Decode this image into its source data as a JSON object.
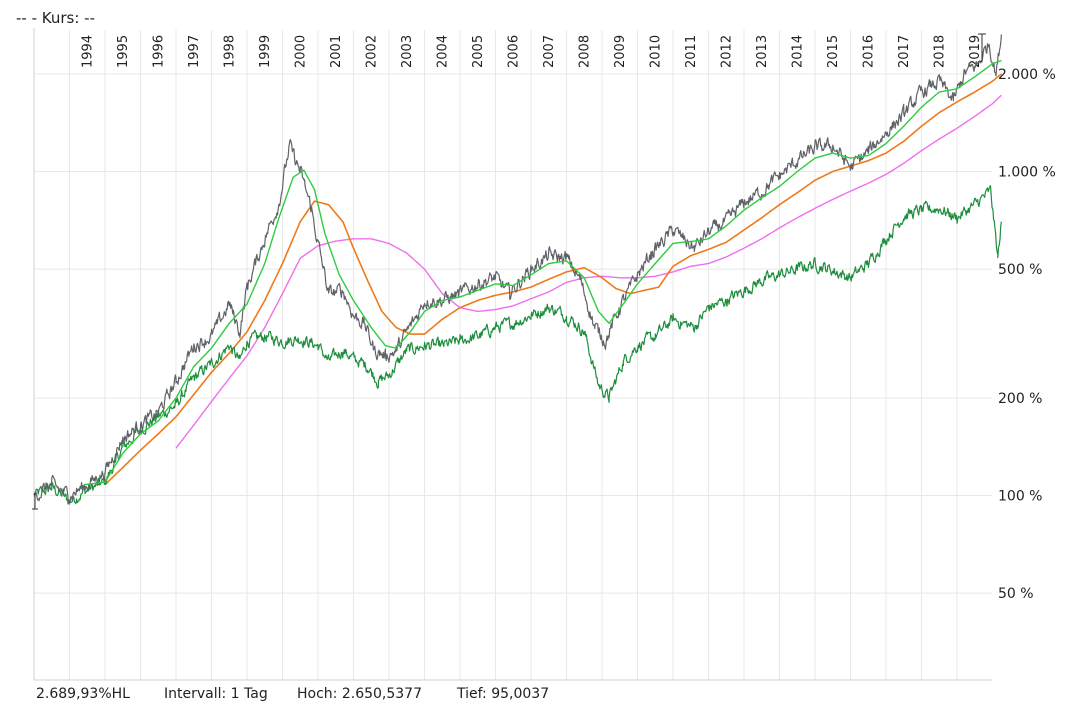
{
  "header": {
    "title": "--  - Kurs: --"
  },
  "footer": {
    "performance": "2.689,93%HL",
    "interval": "Intervall: 1 Tag",
    "high": "Hoch: 2.650,5377",
    "low": "Tief: 95,0037"
  },
  "colors": {
    "price": "#5f6368",
    "benchmark": "#1e8e3e",
    "ma_fast": "#2ecc40",
    "ma_mid": "#f07a1a",
    "ma_slow": "#f06ef0",
    "grid": "#e8e8e8"
  },
  "chart_data": {
    "type": "line",
    "y_scale": "log",
    "ylim": [
      30,
      2900
    ],
    "x_range": [
      1993.0,
      2020.25
    ],
    "year_labels": [
      "1994",
      "1995",
      "1996",
      "1997",
      "1998",
      "1999",
      "2000",
      "2001",
      "2002",
      "2003",
      "2004",
      "2005",
      "2006",
      "2007",
      "2008",
      "2009",
      "2010",
      "2011",
      "2012",
      "2013",
      "2014",
      "2015",
      "2016",
      "2017",
      "2018",
      "2019"
    ],
    "y_ticks": [
      {
        "value": 2000,
        "label": "2.000 %"
      },
      {
        "value": 1000,
        "label": "1.000 %"
      },
      {
        "value": 500,
        "label": "500 %"
      },
      {
        "value": 200,
        "label": "200 %"
      },
      {
        "value": 100,
        "label": "100 %"
      },
      {
        "value": 50,
        "label": "50 %"
      }
    ],
    "series": [
      {
        "key": "price",
        "points": [
          [
            1993.0,
            100
          ],
          [
            1993.5,
            108
          ],
          [
            1994.0,
            100
          ],
          [
            1994.5,
            108
          ],
          [
            1995.0,
            118
          ],
          [
            1995.5,
            150
          ],
          [
            1996.0,
            165
          ],
          [
            1996.5,
            180
          ],
          [
            1997.0,
            225
          ],
          [
            1997.5,
            290
          ],
          [
            1998.0,
            310
          ],
          [
            1998.5,
            390
          ],
          [
            1998.8,
            320
          ],
          [
            1999.0,
            440
          ],
          [
            1999.5,
            620
          ],
          [
            1999.9,
            800
          ],
          [
            2000.2,
            1200
          ],
          [
            2000.5,
            1000
          ],
          [
            2000.8,
            780
          ],
          [
            2001.0,
            600
          ],
          [
            2001.3,
            420
          ],
          [
            2001.7,
            430
          ],
          [
            2002.0,
            360
          ],
          [
            2002.3,
            340
          ],
          [
            2002.6,
            280
          ],
          [
            2002.9,
            270
          ],
          [
            2003.2,
            280
          ],
          [
            2003.5,
            320
          ],
          [
            2003.8,
            360
          ],
          [
            2004.0,
            400
          ],
          [
            2004.5,
            400
          ],
          [
            2005.0,
            420
          ],
          [
            2005.5,
            450
          ],
          [
            2006.0,
            470
          ],
          [
            2006.4,
            420
          ],
          [
            2007.0,
            500
          ],
          [
            2007.5,
            550
          ],
          [
            2008.0,
            540
          ],
          [
            2008.4,
            460
          ],
          [
            2008.8,
            330
          ],
          [
            2009.1,
            300
          ],
          [
            2009.5,
            380
          ],
          [
            2010.0,
            480
          ],
          [
            2010.4,
            560
          ],
          [
            2011.0,
            660
          ],
          [
            2011.6,
            580
          ],
          [
            2012.0,
            650
          ],
          [
            2012.5,
            700
          ],
          [
            2013.0,
            800
          ],
          [
            2013.5,
            870
          ],
          [
            2014.0,
            970
          ],
          [
            2014.5,
            1080
          ],
          [
            2015.0,
            1180
          ],
          [
            2015.5,
            1200
          ],
          [
            2016.0,
            1030
          ],
          [
            2016.5,
            1150
          ],
          [
            2017.0,
            1320
          ],
          [
            2017.5,
            1500
          ],
          [
            2018.0,
            1750
          ],
          [
            2018.5,
            1900
          ],
          [
            2018.9,
            1650
          ],
          [
            2019.2,
            2000
          ],
          [
            2019.6,
            2150
          ],
          [
            2019.9,
            2500
          ],
          [
            2020.1,
            2000
          ],
          [
            2020.25,
            2650
          ]
        ]
      },
      {
        "key": "benchmark",
        "points": [
          [
            1993.0,
            100
          ],
          [
            1993.5,
            106
          ],
          [
            1994.0,
            96
          ],
          [
            1994.5,
            104
          ],
          [
            1995.0,
            110
          ],
          [
            1995.5,
            140
          ],
          [
            1996.0,
            160
          ],
          [
            1996.5,
            175
          ],
          [
            1997.0,
            190
          ],
          [
            1997.5,
            230
          ],
          [
            1998.0,
            255
          ],
          [
            1998.5,
            290
          ],
          [
            1998.8,
            260
          ],
          [
            1999.0,
            300
          ],
          [
            1999.5,
            310
          ],
          [
            2000.0,
            300
          ],
          [
            2000.5,
            305
          ],
          [
            2001.0,
            290
          ],
          [
            2001.3,
            260
          ],
          [
            2001.7,
            280
          ],
          [
            2002.0,
            265
          ],
          [
            2002.4,
            250
          ],
          [
            2002.7,
            225
          ],
          [
            2003.0,
            235
          ],
          [
            2003.5,
            280
          ],
          [
            2004.0,
            290
          ],
          [
            2004.5,
            290
          ],
          [
            2005.0,
            300
          ],
          [
            2005.5,
            310
          ],
          [
            2006.0,
            330
          ],
          [
            2006.5,
            340
          ],
          [
            2007.0,
            360
          ],
          [
            2007.5,
            380
          ],
          [
            2008.0,
            360
          ],
          [
            2008.5,
            320
          ],
          [
            2008.9,
            220
          ],
          [
            2009.2,
            200
          ],
          [
            2009.6,
            260
          ],
          [
            2010.0,
            290
          ],
          [
            2010.5,
            310
          ],
          [
            2011.0,
            350
          ],
          [
            2011.6,
            330
          ],
          [
            2012.0,
            380
          ],
          [
            2012.5,
            400
          ],
          [
            2013.0,
            430
          ],
          [
            2013.5,
            460
          ],
          [
            2014.0,
            480
          ],
          [
            2014.5,
            500
          ],
          [
            2015.0,
            520
          ],
          [
            2015.6,
            490
          ],
          [
            2016.0,
            470
          ],
          [
            2016.5,
            520
          ],
          [
            2017.0,
            620
          ],
          [
            2017.5,
            730
          ],
          [
            2018.0,
            760
          ],
          [
            2018.5,
            770
          ],
          [
            2019.0,
            720
          ],
          [
            2019.5,
            790
          ],
          [
            2019.95,
            870
          ],
          [
            2020.15,
            540
          ],
          [
            2020.25,
            700
          ]
        ]
      },
      {
        "key": "ma_fast",
        "points": [
          [
            1994.4,
            108
          ],
          [
            1995.0,
            110
          ],
          [
            1995.5,
            135
          ],
          [
            1996.0,
            155
          ],
          [
            1996.5,
            170
          ],
          [
            1997.0,
            200
          ],
          [
            1997.5,
            250
          ],
          [
            1998.0,
            285
          ],
          [
            1998.5,
            340
          ],
          [
            1999.0,
            390
          ],
          [
            1999.5,
            520
          ],
          [
            1999.9,
            720
          ],
          [
            2000.3,
            960
          ],
          [
            2000.6,
            1010
          ],
          [
            2000.9,
            880
          ],
          [
            2001.2,
            640
          ],
          [
            2001.6,
            480
          ],
          [
            2002.0,
            400
          ],
          [
            2002.5,
            330
          ],
          [
            2002.9,
            290
          ],
          [
            2003.2,
            285
          ],
          [
            2003.6,
            320
          ],
          [
            2004.0,
            370
          ],
          [
            2004.5,
            400
          ],
          [
            2005.0,
            410
          ],
          [
            2005.5,
            430
          ],
          [
            2006.0,
            450
          ],
          [
            2006.5,
            445
          ],
          [
            2007.0,
            480
          ],
          [
            2007.5,
            520
          ],
          [
            2008.0,
            530
          ],
          [
            2008.5,
            470
          ],
          [
            2008.9,
            370
          ],
          [
            2009.2,
            340
          ],
          [
            2009.6,
            390
          ],
          [
            2010.0,
            450
          ],
          [
            2010.5,
            520
          ],
          [
            2011.0,
            600
          ],
          [
            2011.6,
            610
          ],
          [
            2012.0,
            620
          ],
          [
            2012.5,
            680
          ],
          [
            2013.0,
            760
          ],
          [
            2013.5,
            830
          ],
          [
            2014.0,
            900
          ],
          [
            2014.5,
            1000
          ],
          [
            2015.0,
            1100
          ],
          [
            2015.5,
            1140
          ],
          [
            2016.0,
            1100
          ],
          [
            2016.5,
            1120
          ],
          [
            2017.0,
            1220
          ],
          [
            2017.5,
            1380
          ],
          [
            2018.0,
            1580
          ],
          [
            2018.5,
            1760
          ],
          [
            2019.0,
            1800
          ],
          [
            2019.5,
            1960
          ],
          [
            2020.0,
            2150
          ],
          [
            2020.25,
            2200
          ]
        ]
      },
      {
        "key": "ma_mid",
        "points": [
          [
            1995.0,
            108
          ],
          [
            1995.5,
            122
          ],
          [
            1996.0,
            138
          ],
          [
            1996.5,
            155
          ],
          [
            1997.0,
            175
          ],
          [
            1997.5,
            205
          ],
          [
            1998.0,
            240
          ],
          [
            1998.5,
            275
          ],
          [
            1999.0,
            320
          ],
          [
            1999.5,
            400
          ],
          [
            2000.0,
            520
          ],
          [
            2000.5,
            700
          ],
          [
            2000.9,
            810
          ],
          [
            2001.3,
            790
          ],
          [
            2001.7,
            700
          ],
          [
            2002.0,
            580
          ],
          [
            2002.4,
            460
          ],
          [
            2002.8,
            370
          ],
          [
            2003.2,
            330
          ],
          [
            2003.6,
            315
          ],
          [
            2004.0,
            315
          ],
          [
            2004.5,
            350
          ],
          [
            2005.0,
            380
          ],
          [
            2005.5,
            400
          ],
          [
            2006.0,
            415
          ],
          [
            2006.5,
            425
          ],
          [
            2007.0,
            440
          ],
          [
            2007.5,
            465
          ],
          [
            2008.0,
            490
          ],
          [
            2008.5,
            505
          ],
          [
            2009.0,
            470
          ],
          [
            2009.4,
            435
          ],
          [
            2009.8,
            420
          ],
          [
            2010.2,
            430
          ],
          [
            2010.6,
            440
          ],
          [
            2011.0,
            510
          ],
          [
            2011.5,
            550
          ],
          [
            2012.0,
            575
          ],
          [
            2012.5,
            605
          ],
          [
            2013.0,
            660
          ],
          [
            2013.5,
            720
          ],
          [
            2014.0,
            790
          ],
          [
            2014.5,
            860
          ],
          [
            2015.0,
            940
          ],
          [
            2015.5,
            1000
          ],
          [
            2016.0,
            1040
          ],
          [
            2016.5,
            1080
          ],
          [
            2017.0,
            1140
          ],
          [
            2017.5,
            1240
          ],
          [
            2018.0,
            1380
          ],
          [
            2018.5,
            1520
          ],
          [
            2019.0,
            1640
          ],
          [
            2019.5,
            1760
          ],
          [
            2020.0,
            1900
          ],
          [
            2020.25,
            2000
          ]
        ]
      },
      {
        "key": "ma_slow",
        "points": [
          [
            1997.0,
            140
          ],
          [
            1997.5,
            165
          ],
          [
            1998.0,
            195
          ],
          [
            1998.5,
            230
          ],
          [
            1999.0,
            270
          ],
          [
            1999.5,
            330
          ],
          [
            2000.0,
            420
          ],
          [
            2000.5,
            540
          ],
          [
            2001.0,
            590
          ],
          [
            2001.5,
            610
          ],
          [
            2002.0,
            620
          ],
          [
            2002.5,
            620
          ],
          [
            2003.0,
            600
          ],
          [
            2003.5,
            560
          ],
          [
            2004.0,
            500
          ],
          [
            2004.5,
            420
          ],
          [
            2005.0,
            380
          ],
          [
            2005.5,
            370
          ],
          [
            2006.0,
            375
          ],
          [
            2006.5,
            385
          ],
          [
            2007.0,
            405
          ],
          [
            2007.5,
            425
          ],
          [
            2008.0,
            455
          ],
          [
            2008.5,
            470
          ],
          [
            2009.0,
            475
          ],
          [
            2009.5,
            470
          ],
          [
            2010.0,
            470
          ],
          [
            2010.5,
            475
          ],
          [
            2011.0,
            490
          ],
          [
            2011.5,
            510
          ],
          [
            2012.0,
            520
          ],
          [
            2012.5,
            545
          ],
          [
            2013.0,
            580
          ],
          [
            2013.5,
            620
          ],
          [
            2014.0,
            670
          ],
          [
            2014.5,
            720
          ],
          [
            2015.0,
            770
          ],
          [
            2015.5,
            820
          ],
          [
            2016.0,
            870
          ],
          [
            2016.5,
            920
          ],
          [
            2017.0,
            980
          ],
          [
            2017.5,
            1060
          ],
          [
            2018.0,
            1160
          ],
          [
            2018.5,
            1260
          ],
          [
            2019.0,
            1360
          ],
          [
            2019.5,
            1480
          ],
          [
            2020.0,
            1620
          ],
          [
            2020.25,
            1720
          ]
        ]
      }
    ]
  }
}
